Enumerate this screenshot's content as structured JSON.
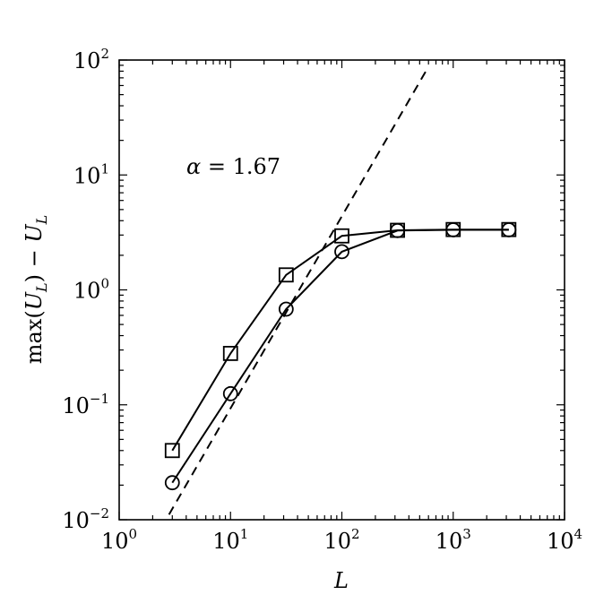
{
  "chart_data": {
    "type": "line",
    "xscale": "log",
    "yscale": "log",
    "xlim": [
      1,
      10000
    ],
    "ylim": [
      0.01,
      100
    ],
    "xlabel": "L",
    "ylabel_parts": {
      "func": "max",
      "open": "(",
      "var": "U",
      "sub": "L",
      "close": ")",
      "minus": " − "
    },
    "x_ticks": [
      {
        "base": "10",
        "exp": "0",
        "value": 1
      },
      {
        "base": "10",
        "exp": "1",
        "value": 10
      },
      {
        "base": "10",
        "exp": "2",
        "value": 100
      },
      {
        "base": "10",
        "exp": "3",
        "value": 1000
      },
      {
        "base": "10",
        "exp": "4",
        "value": 10000
      }
    ],
    "y_ticks": [
      {
        "base": "10",
        "exp": "−2",
        "value": 0.01
      },
      {
        "base": "10",
        "exp": "−1",
        "value": 0.1
      },
      {
        "base": "10",
        "exp": "0",
        "value": 1
      },
      {
        "base": "10",
        "exp": "1",
        "value": 10
      },
      {
        "base": "10",
        "exp": "2",
        "value": 100
      }
    ],
    "annotation": {
      "symbol": "α",
      "text": " = 1.67"
    },
    "series": [
      {
        "marker": "square",
        "style": "solid",
        "points": [
          [
            3,
            0.04
          ],
          [
            10,
            0.28
          ],
          [
            31.6,
            1.35
          ],
          [
            100,
            2.95
          ],
          [
            316,
            3.3
          ],
          [
            1000,
            3.35
          ],
          [
            3160,
            3.35
          ]
        ]
      },
      {
        "marker": "circle",
        "style": "solid",
        "points": [
          [
            3,
            0.021
          ],
          [
            10,
            0.125
          ],
          [
            31.6,
            0.68
          ],
          [
            100,
            2.15
          ],
          [
            316,
            3.28
          ],
          [
            1000,
            3.33
          ],
          [
            3160,
            3.33
          ]
        ]
      },
      {
        "marker": "none",
        "style": "dashed",
        "slope": 1.67,
        "points": [
          [
            2.8,
            0.0111
          ],
          [
            600,
            87.5
          ]
        ]
      }
    ],
    "grid": false,
    "legend": "none"
  }
}
